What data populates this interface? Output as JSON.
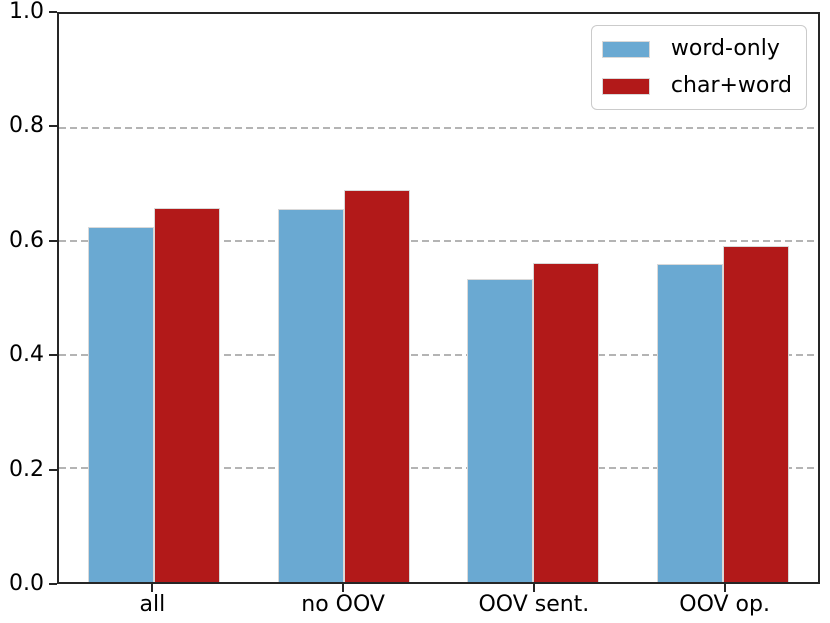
{
  "figure": {
    "background": "#ffffff",
    "spine_color": "#262626",
    "grid_color": "#b4b4b4",
    "bar_edge_color": "#d9d9d9",
    "text_color": "#000000"
  },
  "chart_data": {
    "type": "bar",
    "categories": [
      "all",
      "no OOV",
      "OOV sent.",
      "OOV op."
    ],
    "series": [
      {
        "name": "word-only",
        "color": "#6aa9d2",
        "values": [
          0.625,
          0.657,
          0.534,
          0.56
        ]
      },
      {
        "name": "char+word",
        "color": "#b21919",
        "values": [
          0.658,
          0.691,
          0.561,
          0.591
        ]
      }
    ],
    "ylim": [
      0.0,
      1.0
    ],
    "yticks": [
      0.0,
      0.2,
      0.4,
      0.6,
      0.8,
      1.0
    ],
    "ytick_labels": [
      "0.0",
      "0.2",
      "0.4",
      "0.6",
      "0.8",
      "1.0"
    ],
    "grid": "horizontal dashed gridlines at inner y ticks",
    "legend": {
      "position": "upper right"
    }
  }
}
